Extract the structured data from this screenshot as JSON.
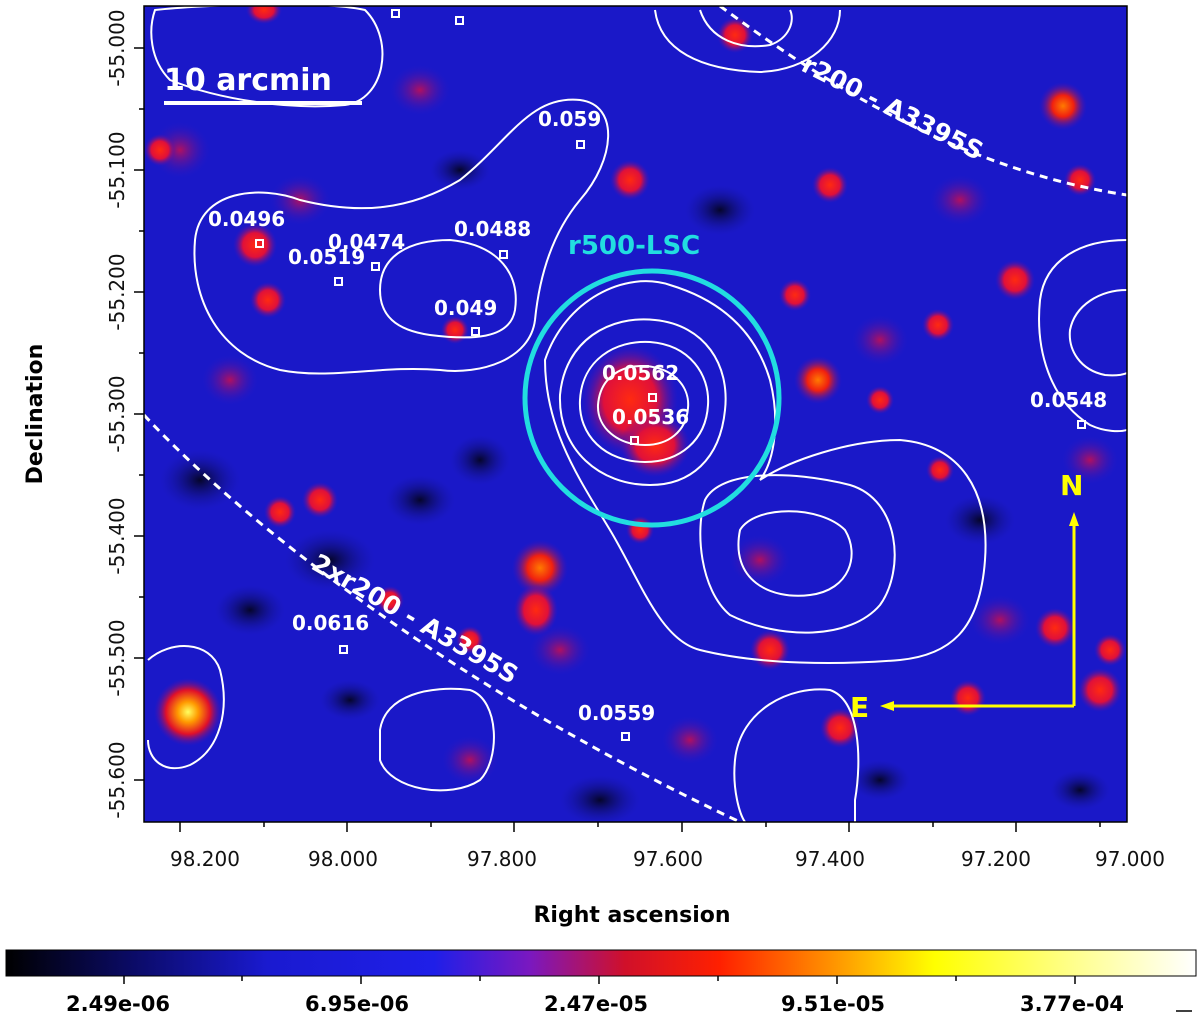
{
  "axes": {
    "xlabel": "Right ascension",
    "ylabel": "Declination",
    "x_ticks": [
      "98.200",
      "98.000",
      "97.800",
      "97.600",
      "97.400",
      "97.200",
      "97.000"
    ],
    "y_ticks": [
      "-55.000",
      "-55.100",
      "-55.200",
      "-55.300",
      "-55.400",
      "-55.500",
      "-55.600"
    ]
  },
  "scale_bar": {
    "label": "10 arcmin"
  },
  "overlays": {
    "r500_label": "r500-LSC",
    "r200_label": "r200 - A3395S",
    "r200x2_label": "2xr200 - A3395S",
    "north_label": "N",
    "east_label": "E"
  },
  "colors": {
    "r500_circle": "#22dde0",
    "compass": "#ffff00",
    "contours": "#ffffff",
    "background": "#1a18c8"
  },
  "redshifts": [
    "0.059",
    "0.0496",
    "0.0474",
    "0.0488",
    "0.0519",
    "0.049",
    "0.0562",
    "0.0536",
    "0.0548",
    "0.0616",
    "0.0559"
  ],
  "colorbar": {
    "labels": [
      "2.49e-06",
      "6.95e-06",
      "2.47e-05",
      "9.51e-05",
      "3.77e-04"
    ]
  }
}
